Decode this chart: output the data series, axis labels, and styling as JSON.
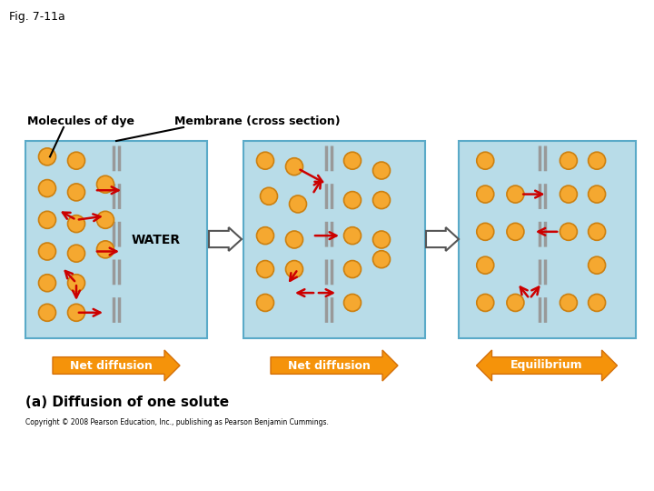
{
  "fig_label": "Fig. 7-11a",
  "bg_color": "#ffffff",
  "box_color": "#b8dce8",
  "box_edge_color": "#5aaac8",
  "membrane_color": "#999999",
  "ball_face": "#f5a830",
  "ball_edge": "#cc8010",
  "arrow_color": "#cc0000",
  "water_text": "WATER",
  "panel1_label": "Net diffusion",
  "panel2_label": "Net diffusion",
  "panel3_label": "Equilibrium",
  "bottom_label": "(a) Diffusion of one solute",
  "copyright": "Copyright © 2008 Pearson Education, Inc., publishing as Pearson Benjamin Cummings.",
  "label_molecules": "Molecules of dye",
  "label_membrane": "Membrane (cross section)"
}
